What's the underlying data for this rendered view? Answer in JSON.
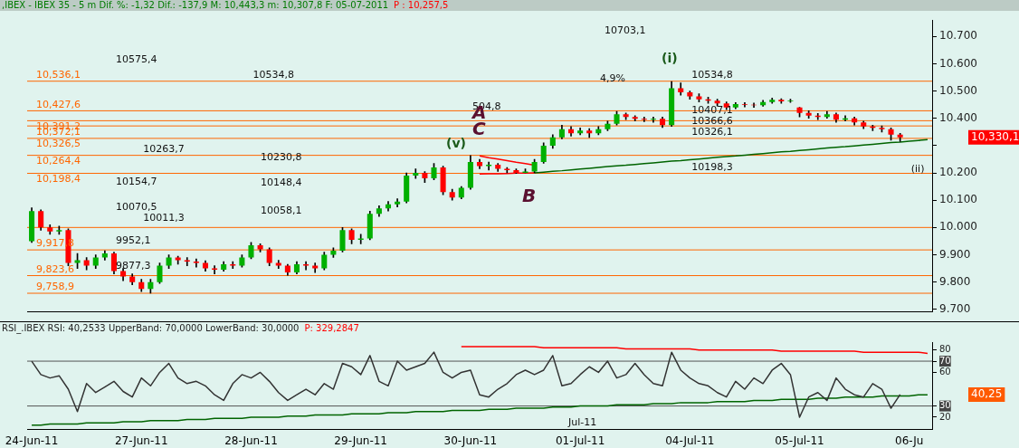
{
  "chart_data": [
    {
      "type": "candlestick",
      "title": ",IBEX - IBEX 35 - 5 m Dif. %: -1,32 Dif.: -137,9 M: 10,443,3 m: 10,307,8 F: 05-07-2011",
      "subtitle": "P : 10,257,5",
      "categories": [
        "24-Jun-11",
        null,
        null,
        null,
        null,
        null,
        null,
        null,
        null,
        null,
        null,
        null,
        "27-Jun-11",
        null,
        null,
        null,
        null,
        null,
        null,
        null,
        null,
        null,
        null,
        null,
        "28-Jun-11",
        null,
        null,
        null,
        null,
        null,
        null,
        null,
        null,
        null,
        null,
        null,
        "29-Jun-11",
        null,
        null,
        null,
        null,
        null,
        null,
        null,
        null,
        null,
        null,
        null,
        "30-Jun-11",
        null,
        null,
        null,
        null,
        null,
        null,
        null,
        null,
        null,
        null,
        null,
        "01-Jul-11",
        null,
        null,
        null,
        null,
        null,
        null,
        null,
        null,
        null,
        null,
        null,
        "04-Jul-11",
        null,
        null,
        null,
        null,
        null,
        null,
        null,
        null,
        null,
        null,
        null,
        "05-Jul-11",
        null,
        null,
        null,
        null,
        null,
        null,
        null,
        null,
        null,
        null,
        null,
        "06-Ju",
        null,
        null
      ],
      "ohlc": [
        [
          9950,
          10072,
          9945,
          10060
        ],
        [
          10060,
          10065,
          9990,
          10000
        ],
        [
          10000,
          10010,
          9975,
          9985
        ],
        [
          9985,
          10005,
          9975,
          9990
        ],
        [
          9990,
          9995,
          9860,
          9870
        ],
        [
          9870,
          9905,
          9850,
          9880
        ],
        [
          9880,
          9890,
          9845,
          9860
        ],
        [
          9860,
          9900,
          9850,
          9890
        ],
        [
          9890,
          9915,
          9880,
          9905
        ],
        [
          9905,
          9910,
          9830,
          9840
        ],
        [
          9840,
          9850,
          9805,
          9820
        ],
        [
          9820,
          9830,
          9790,
          9800
        ],
        [
          9800,
          9810,
          9765,
          9775
        ],
        [
          9775,
          9810,
          9758.9,
          9800
        ],
        [
          9800,
          9870,
          9795,
          9860
        ],
        [
          9860,
          9900,
          9850,
          9890
        ],
        [
          9890,
          9895,
          9865,
          9880
        ],
        [
          9880,
          9890,
          9860,
          9875
        ],
        [
          9875,
          9885,
          9855,
          9870
        ],
        [
          9870,
          9878,
          9840,
          9850
        ],
        [
          9850,
          9860,
          9830,
          9845
        ],
        [
          9845,
          9875,
          9840,
          9865
        ],
        [
          9865,
          9875,
          9850,
          9860
        ],
        [
          9860,
          9900,
          9855,
          9890
        ],
        [
          9890,
          9945,
          9885,
          9935
        ],
        [
          9935,
          9940,
          9910,
          9920
        ],
        [
          9920,
          9925,
          9860,
          9870
        ],
        [
          9870,
          9880,
          9850,
          9860
        ],
        [
          9860,
          9865,
          9825,
          9835
        ],
        [
          9835,
          9875,
          9830,
          9865
        ],
        [
          9865,
          9875,
          9845,
          9860
        ],
        [
          9860,
          9870,
          9835,
          9850
        ],
        [
          9850,
          9910,
          9845,
          9900
        ],
        [
          9900,
          9925,
          9890,
          9915
        ],
        [
          9915,
          10000,
          9910,
          9990
        ],
        [
          9990,
          9995,
          9940,
          9955
        ],
        [
          9955,
          9975,
          9940,
          9960
        ],
        [
          9960,
          10060,
          9955,
          10050
        ],
        [
          10050,
          10080,
          10040,
          10070
        ],
        [
          10070,
          10095,
          10060,
          10085
        ],
        [
          10085,
          10105,
          10075,
          10095
        ],
        [
          10095,
          10200,
          10090,
          10190
        ],
        [
          10190,
          10215,
          10180,
          10200
        ],
        [
          10200,
          10205,
          10165,
          10180
        ],
        [
          10180,
          10235,
          10175,
          10220
        ],
        [
          10220,
          10225,
          10120,
          10130
        ],
        [
          10130,
          10140,
          10100,
          10110
        ],
        [
          10110,
          10150,
          10105,
          10145
        ],
        [
          10145,
          10263.7,
          10140,
          10240
        ],
        [
          10240,
          10250,
          10215,
          10225
        ],
        [
          10225,
          10240,
          10210,
          10230
        ],
        [
          10230,
          10235,
          10205,
          10215
        ],
        [
          10215,
          10220,
          10200,
          10210
        ],
        [
          10210,
          10215,
          10198.3,
          10200
        ],
        [
          10200,
          10215,
          10200,
          10205
        ],
        [
          10205,
          10250,
          10200,
          10240
        ],
        [
          10240,
          10310,
          10235,
          10300
        ],
        [
          10300,
          10340,
          10290,
          10330
        ],
        [
          10330,
          10375,
          10325,
          10360
        ],
        [
          10360,
          10370,
          10335,
          10345
        ],
        [
          10345,
          10365,
          10340,
          10355
        ],
        [
          10355,
          10362,
          10330,
          10345
        ],
        [
          10345,
          10370,
          10340,
          10360
        ],
        [
          10360,
          10390,
          10355,
          10380
        ],
        [
          10380,
          10425,
          10375,
          10415
        ],
        [
          10415,
          10420,
          10395,
          10405
        ],
        [
          10405,
          10410,
          10390,
          10398
        ],
        [
          10398,
          10405,
          10388,
          10395
        ],
        [
          10395,
          10405,
          10385,
          10398
        ],
        [
          10398,
          10405,
          10366.6,
          10375
        ],
        [
          10375,
          10534.8,
          10370,
          10510
        ],
        [
          10510,
          10530,
          10485,
          10495
        ],
        [
          10495,
          10500,
          10470,
          10480
        ],
        [
          10480,
          10490,
          10460,
          10470
        ],
        [
          10470,
          10478,
          10455,
          10465
        ],
        [
          10465,
          10470,
          10445,
          10455
        ],
        [
          10455,
          10460,
          10432,
          10440
        ],
        [
          10440,
          10458,
          10435,
          10452
        ],
        [
          10452,
          10458,
          10442,
          10450
        ],
        [
          10450,
          10456,
          10440,
          10448
        ],
        [
          10448,
          10466,
          10444,
          10460
        ],
        [
          10460,
          10474,
          10455,
          10468
        ],
        [
          10468,
          10472,
          10455,
          10462
        ],
        [
          10462,
          10470,
          10458,
          10465
        ],
        [
          10440,
          10440,
          10405,
          10420
        ],
        [
          10420,
          10428,
          10400,
          10410
        ],
        [
          10410,
          10418,
          10395,
          10405
        ],
        [
          10405,
          10425,
          10400,
          10415
        ],
        [
          10415,
          10420,
          10385,
          10395
        ],
        [
          10395,
          10410,
          10390,
          10400
        ],
        [
          10400,
          10405,
          10375,
          10385
        ],
        [
          10385,
          10390,
          10362,
          10370
        ],
        [
          10370,
          10375,
          10355,
          10365
        ],
        [
          10365,
          10372,
          10350,
          10360
        ],
        [
          10360,
          10365,
          10320,
          10340
        ],
        [
          10340,
          10345,
          10315,
          10330.1
        ],
        null,
        null,
        null
      ],
      "series": [
        {
          "type": "line",
          "color": "#006400",
          "values": [
            null,
            null,
            null,
            null,
            null,
            null,
            null,
            null,
            null,
            null,
            null,
            null,
            null,
            null,
            null,
            null,
            null,
            null,
            null,
            null,
            null,
            null,
            null,
            null,
            null,
            null,
            null,
            null,
            null,
            null,
            null,
            null,
            null,
            null,
            null,
            null,
            null,
            null,
            null,
            null,
            null,
            null,
            null,
            null,
            null,
            null,
            null,
            null,
            null,
            null,
            null,
            null,
            null,
            null,
            null,
            10200,
            10203,
            10206,
            10208,
            10211,
            10214,
            10217,
            10220,
            10223,
            10226,
            10228,
            10231,
            10234,
            10237,
            10240,
            10243,
            10245,
            10248,
            10251,
            10254,
            10257,
            10260,
            10262,
            10265,
            10268,
            10271,
            10274,
            10277,
            10279,
            10282,
            10285,
            10288,
            10291,
            10294,
            10296,
            10299,
            10302,
            10305,
            10308,
            10311,
            10313,
            10316,
            10319,
            10322
          ]
        },
        {
          "type": "line",
          "color": "#ff0000",
          "values": [
            null,
            null,
            null,
            null,
            null,
            null,
            null,
            null,
            null,
            null,
            null,
            null,
            null,
            null,
            null,
            null,
            null,
            null,
            null,
            null,
            null,
            null,
            null,
            null,
            null,
            null,
            null,
            null,
            null,
            null,
            null,
            null,
            null,
            null,
            null,
            null,
            null,
            null,
            null,
            null,
            null,
            null,
            null,
            null,
            null,
            null,
            null,
            null,
            null,
            10262,
            10256,
            10251,
            10245,
            10239,
            10234,
            10228,
            null,
            null,
            null,
            null,
            null,
            null,
            null,
            null,
            null,
            null,
            null,
            null,
            null,
            null,
            null,
            null,
            null,
            null,
            null,
            null,
            null,
            null,
            null,
            null,
            null,
            null,
            null,
            null,
            null,
            null,
            null,
            null,
            null,
            null,
            null,
            null,
            null,
            null,
            null,
            null,
            null,
            null,
            null
          ]
        },
        {
          "type": "line",
          "color": "#ff0000",
          "values": [
            null,
            null,
            null,
            null,
            null,
            null,
            null,
            null,
            null,
            null,
            null,
            null,
            null,
            null,
            null,
            null,
            null,
            null,
            null,
            null,
            null,
            null,
            null,
            null,
            null,
            null,
            null,
            null,
            null,
            null,
            null,
            null,
            null,
            null,
            null,
            null,
            null,
            null,
            null,
            null,
            null,
            null,
            null,
            null,
            null,
            null,
            null,
            null,
            null,
            10196,
            10197,
            10197,
            10198,
            10199,
            10199,
            10200,
            null,
            null,
            null,
            null,
            null,
            null,
            null,
            null,
            null,
            null,
            null,
            null,
            null,
            null,
            null,
            null,
            null,
            null,
            null,
            null,
            null,
            null,
            null,
            null,
            null,
            null,
            null,
            null,
            null,
            null,
            null,
            null,
            null,
            null,
            null,
            null,
            null,
            null,
            null,
            null,
            null,
            null,
            null
          ]
        }
      ],
      "ylim": [
        9690,
        10760
      ],
      "yticks": [
        {
          "value": 9700,
          "label": "9.700"
        },
        {
          "value": 9800,
          "label": "9.800"
        },
        {
          "value": 9900,
          "label": "9.900"
        },
        {
          "value": 10000,
          "label": "10.000"
        },
        {
          "value": 10100,
          "label": "10.100"
        },
        {
          "value": 10200,
          "label": "10.200"
        },
        {
          "value": 10300,
          "label": null
        },
        {
          "value": 10400,
          "label": "10.400"
        },
        {
          "value": 10500,
          "label": "10.500"
        },
        {
          "value": 10600,
          "label": "10.600"
        },
        {
          "value": 10700,
          "label": "10.700"
        }
      ],
      "tick_labels": "y",
      "ref_lines": [
        {
          "axis": "y",
          "value": 10536.1,
          "label": "10,536,1",
          "color": "#ff6600"
        },
        {
          "axis": "y",
          "value": 10427.6,
          "label": "10,427,6",
          "color": "#ff6600"
        },
        {
          "axis": "y",
          "value": 10391.2,
          "label": "10,391,2",
          "color": "#ff6600"
        },
        {
          "axis": "y",
          "value": 10372.1,
          "label": "10,372,1",
          "color": "#ff6600"
        },
        {
          "axis": "y",
          "value": 10326.5,
          "label": "10,326,5",
          "color": "#ff6600"
        },
        {
          "axis": "y",
          "value": 10264.4,
          "label": "10,264,4",
          "color": "#ff6600"
        },
        {
          "axis": "y",
          "value": 10198.4,
          "label": "10,198,4",
          "color": "#ff6600"
        },
        {
          "axis": "y",
          "value": 10000,
          "label": null,
          "color": "#ff6600"
        },
        {
          "axis": "y",
          "value": 9917.8,
          "label": "9,917,8",
          "color": "#ff6600"
        },
        {
          "axis": "y",
          "value": 9823.6,
          "label": "9,823,6",
          "color": "#ff6600"
        },
        {
          "axis": "y",
          "value": 9758.9,
          "label": "9,758,9",
          "color": "#ff6600"
        }
      ],
      "annotations": [
        "10575,4",
        {
          "text": "10534,8",
          "x": "28-Jun-11",
          "y": 10534.8
        },
        {
          "text": "10263,7",
          "x": "27-Jun-11",
          "y": 10263.7
        },
        "10230,8",
        "10154,7",
        "10148,4",
        "10070,5",
        "10058,1",
        {
          "text": "10011,3",
          "x": "27-Jun-11",
          "y": 10011.3
        },
        "9952,1",
        "9877,3",
        "10703,1",
        "4,9%",
        {
          "text": "504,8",
          "x": "30-Jun-11",
          "y": 10420
        },
        "(i)",
        {
          "text": "10534,8",
          "x": "04-Jul-11",
          "y": 10534.8
        },
        {
          "text": "10407,1",
          "x": "04-Jul-11",
          "y": 10407.1
        },
        {
          "text": "10366,6",
          "x": "04-Jul-11",
          "y": 10366.6
        },
        {
          "text": "10326,1",
          "x": "04-Jul-11",
          "y": 10326.1
        },
        {
          "text": "10198,3",
          "x": "04-Jul-11",
          "y": 10198.3
        },
        {
          "text": "A",
          "x": "30-Jun-11",
          "y": 10380
        },
        {
          "text": "C",
          "x": "30-Jun-11",
          "y": 10320
        },
        "(v)",
        "B",
        {
          "text": "(ii)",
          "x": "06-Ju",
          "y": 10190
        },
        "10,330,1"
      ]
    },
    {
      "type": "line",
      "title": "RSI_.IBEX RSI: 40,2533 UpperBand: 70,0000 LowerBand: 30,0000",
      "subtitle": "P: 329,2847",
      "categories": [
        "24-Jun-11",
        null,
        null,
        null,
        null,
        null,
        null,
        null,
        null,
        null,
        null,
        null,
        "27-Jun-11",
        null,
        null,
        null,
        null,
        null,
        null,
        null,
        null,
        null,
        null,
        null,
        "28-Jun-11",
        null,
        null,
        null,
        null,
        null,
        null,
        null,
        null,
        null,
        null,
        null,
        "29-Jun-11",
        null,
        null,
        null,
        null,
        null,
        null,
        null,
        null,
        null,
        null,
        null,
        "30-Jun-11",
        null,
        null,
        null,
        null,
        null,
        null,
        null,
        null,
        null,
        null,
        null,
        "01-Jul-11",
        null,
        null,
        null,
        null,
        null,
        null,
        null,
        null,
        null,
        null,
        null,
        "04-Jul-11",
        null,
        null,
        null,
        null,
        null,
        null,
        null,
        null,
        null,
        null,
        null,
        "05-Jul-11",
        null,
        null,
        null,
        null,
        null,
        null,
        null,
        null,
        null,
        null,
        null,
        "06-Ju",
        null,
        null
      ],
      "series": [
        {
          "color": "#333333",
          "values": [
            70,
            58,
            55,
            57,
            45,
            25,
            50,
            42,
            47,
            52,
            43,
            38,
            55,
            48,
            60,
            68,
            55,
            50,
            52,
            48,
            40,
            35,
            50,
            58,
            55,
            60,
            52,
            42,
            35,
            40,
            45,
            40,
            50,
            45,
            68,
            65,
            58,
            75,
            52,
            48,
            70,
            62,
            65,
            68,
            78,
            60,
            55,
            60,
            62,
            40,
            38,
            45,
            50,
            58,
            62,
            58,
            62,
            75,
            48,
            50,
            58,
            65,
            60,
            70,
            55,
            58,
            68,
            58,
            50,
            48,
            78,
            62,
            55,
            50,
            48,
            42,
            38,
            52,
            45,
            55,
            50,
            62,
            68,
            58,
            20,
            38,
            42,
            35,
            55,
            45,
            40,
            38,
            50,
            45,
            28,
            40.25,
            null,
            null,
            null
          ]
        },
        {
          "color": "#ff0000",
          "values": [
            null,
            null,
            null,
            null,
            null,
            null,
            null,
            null,
            null,
            null,
            null,
            null,
            null,
            null,
            null,
            null,
            null,
            null,
            null,
            null,
            null,
            null,
            null,
            null,
            null,
            null,
            null,
            null,
            null,
            null,
            null,
            null,
            null,
            null,
            null,
            null,
            null,
            null,
            null,
            null,
            null,
            null,
            null,
            null,
            null,
            null,
            null,
            83,
            83,
            83,
            83,
            83,
            83,
            83,
            83,
            83,
            82,
            82,
            82,
            82,
            82,
            82,
            82,
            82,
            82,
            81,
            81,
            81,
            81,
            81,
            81,
            81,
            81,
            80,
            80,
            80,
            80,
            80,
            80,
            80,
            80,
            80,
            79,
            79,
            79,
            79,
            79,
            79,
            79,
            79,
            79,
            78,
            78,
            78,
            78,
            78,
            78,
            78,
            77
          ]
        },
        {
          "color": "#006400",
          "values": [
            13,
            13,
            14,
            14,
            14,
            14,
            15,
            15,
            15,
            15,
            16,
            16,
            16,
            17,
            17,
            17,
            17,
            18,
            18,
            18,
            19,
            19,
            19,
            19,
            20,
            20,
            20,
            20,
            21,
            21,
            21,
            22,
            22,
            22,
            22,
            23,
            23,
            23,
            23,
            24,
            24,
            24,
            25,
            25,
            25,
            25,
            26,
            26,
            26,
            26,
            27,
            27,
            27,
            28,
            28,
            28,
            28,
            29,
            29,
            29,
            30,
            30,
            30,
            30,
            31,
            31,
            31,
            31,
            32,
            32,
            32,
            33,
            33,
            33,
            33,
            34,
            34,
            34,
            34,
            35,
            35,
            35,
            36,
            36,
            36,
            36,
            37,
            37,
            37,
            38,
            38,
            38,
            38,
            39,
            39,
            39,
            39,
            40,
            40
          ]
        }
      ],
      "ylim": [
        9,
        87
      ],
      "yticks": [
        20,
        30,
        60,
        70,
        80
      ],
      "ref_lines": [
        {
          "axis": "y",
          "value": 70,
          "color": "#555555"
        },
        {
          "axis": "y",
          "value": 30,
          "color": "#555555"
        }
      ],
      "annotations": [
        "Jul-11",
        "40,25"
      ]
    }
  ]
}
